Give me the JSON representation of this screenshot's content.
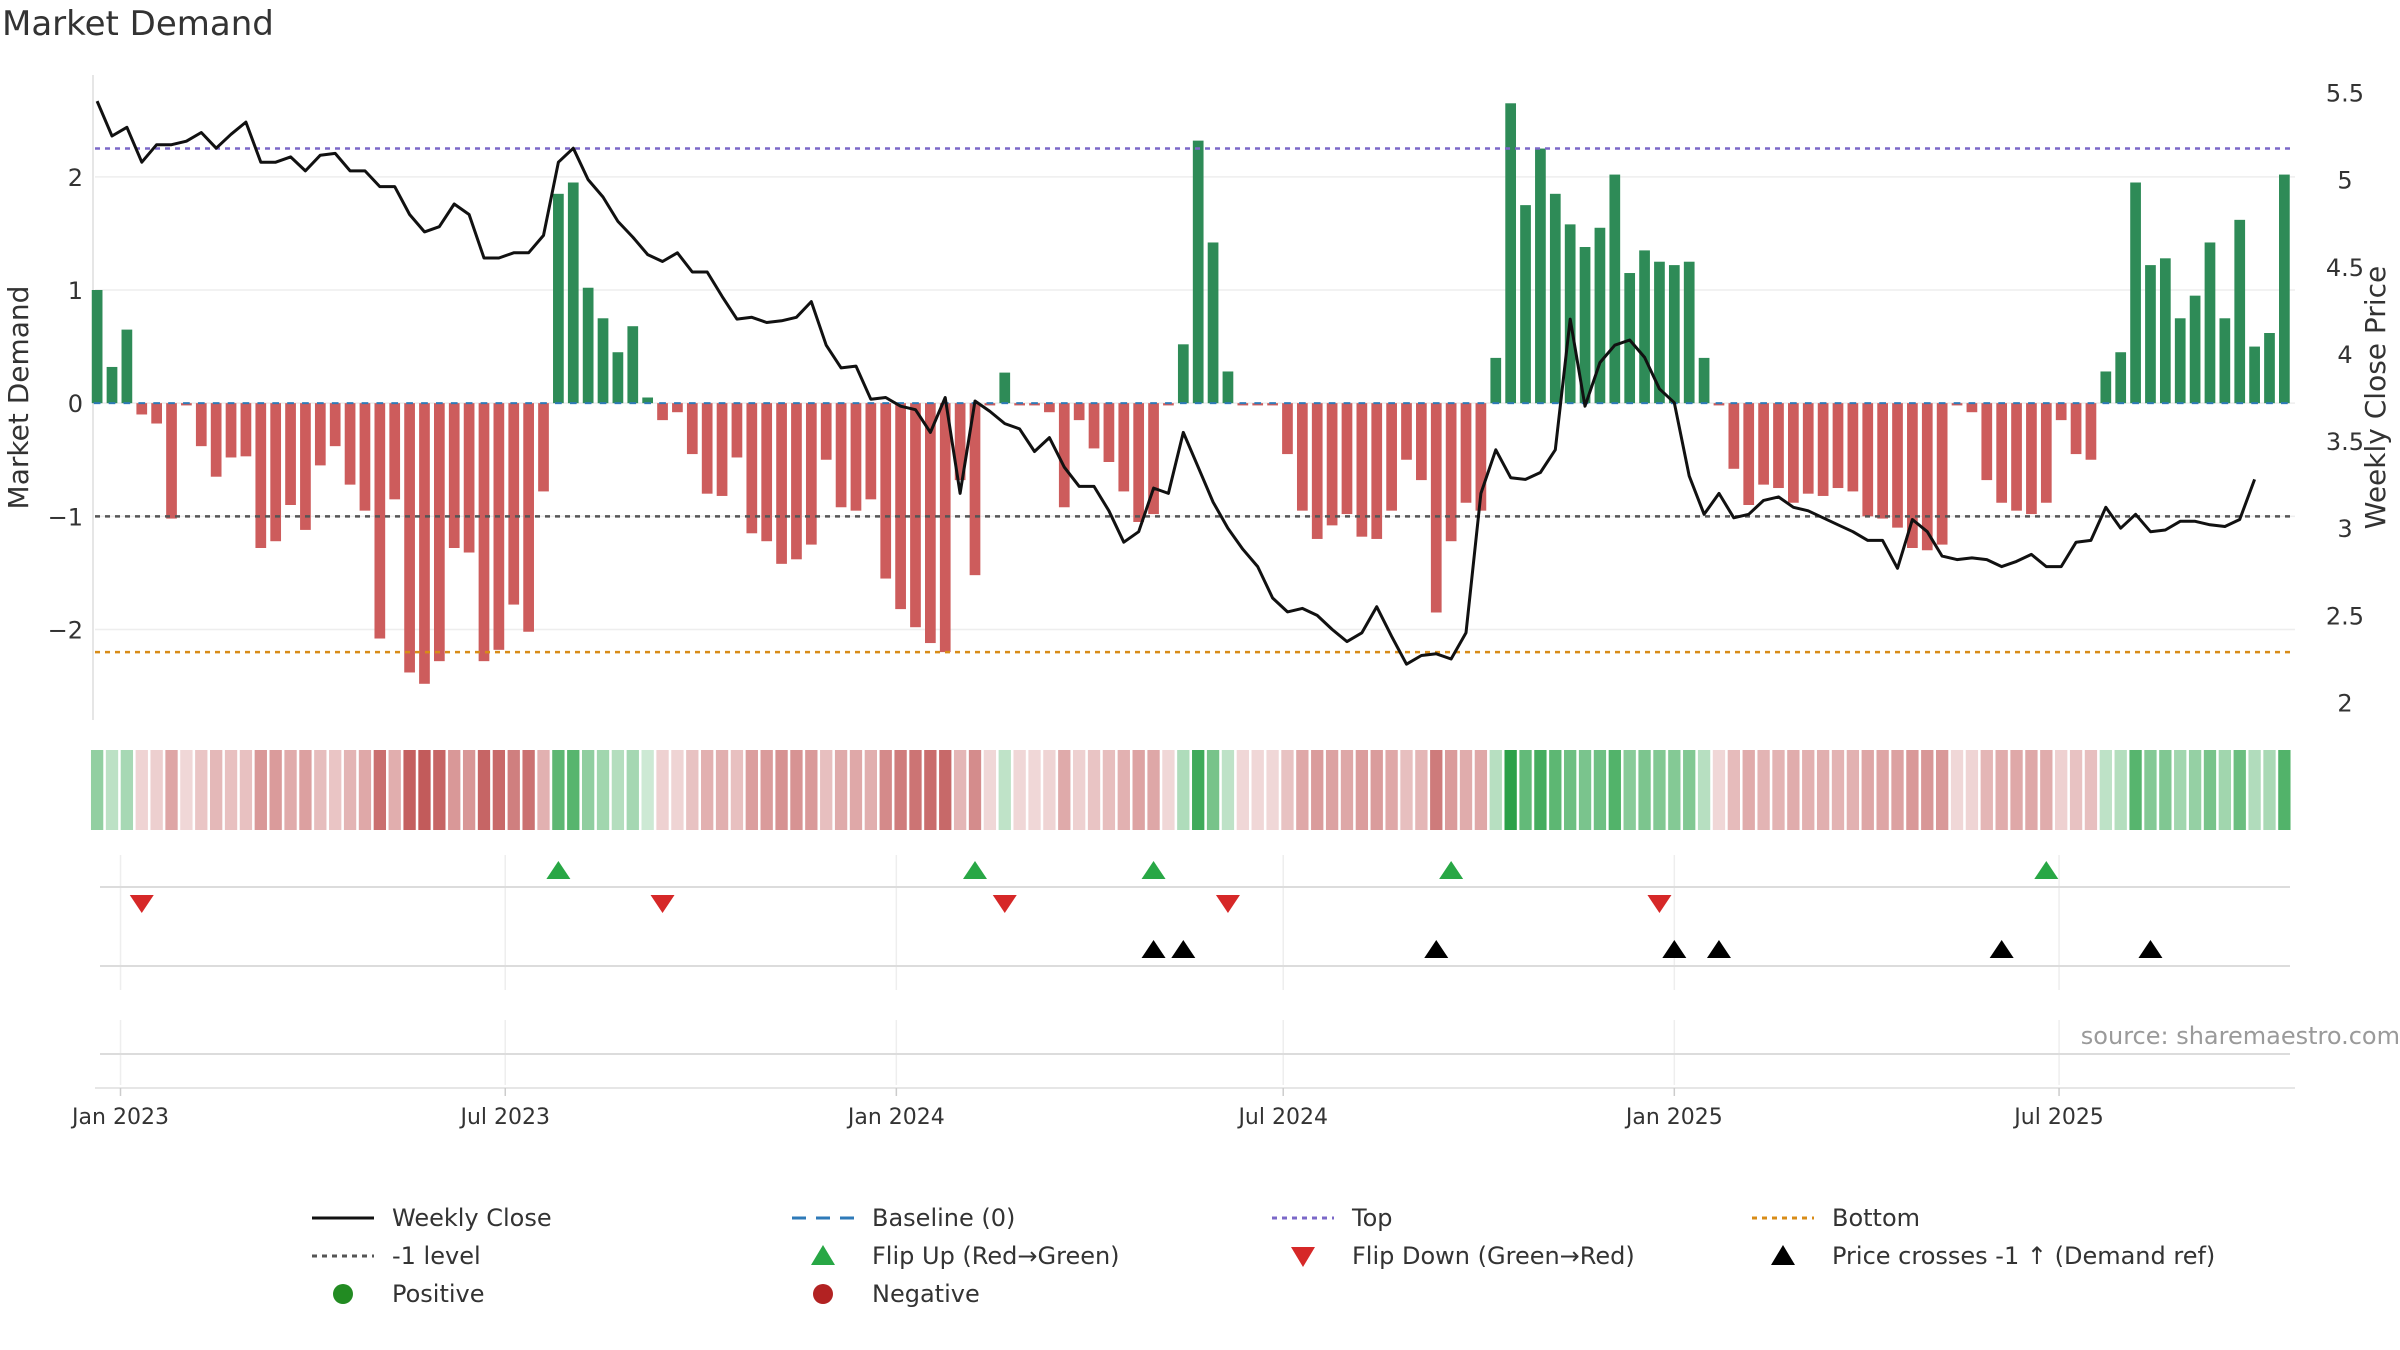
{
  "chart_data": {
    "type": "bar+line",
    "title": "Market Demand",
    "ylabel": "Market Demand",
    "y2label": "Weekly Close Price",
    "ylim": [
      -2.8,
      2.9
    ],
    "y2lim": [
      1.9,
      5.6
    ],
    "yticks": [
      2,
      1,
      0,
      -1,
      -2
    ],
    "yticklabels": [
      "2",
      "1",
      "0",
      "−1",
      "−2"
    ],
    "y2ticks": [
      5.5,
      5,
      4.5,
      4,
      3.5,
      3,
      2.5,
      2
    ],
    "y2ticklabels": [
      "5.5",
      "5",
      "4.5",
      "4",
      "3.5",
      "3",
      "2.5",
      "2"
    ],
    "x_start": "2022-12-20",
    "x_end": "2025-10-20",
    "xticks": [
      {
        "date": "2023-01-01",
        "label": "Jan 2023"
      },
      {
        "date": "2023-07-01",
        "label": "Jul 2023"
      },
      {
        "date": "2024-01-01",
        "label": "Jan 2024"
      },
      {
        "date": "2024-07-01",
        "label": "Jul 2024"
      },
      {
        "date": "2025-01-01",
        "label": "Jan 2025"
      },
      {
        "date": "2025-07-01",
        "label": "Jul 2025"
      }
    ],
    "first_week": "2022-12-21",
    "week_step_days": 7,
    "reference_lines": {
      "top": 2.25,
      "bottom": -2.2,
      "minus_one": -1,
      "baseline": 0
    },
    "colors": {
      "positive": "#2e8b57",
      "negative": "#cd5c5c",
      "line": "#111111",
      "top": "#7b68c8",
      "bottom": "#d88c18",
      "minus_one": "#555555",
      "baseline": "#2e7ab8",
      "flip_up": "#28a745",
      "flip_down": "#d62828",
      "cross": "#000000"
    },
    "demand": [
      1.0,
      0.32,
      0.65,
      -0.1,
      -0.18,
      -1.02,
      -0.02,
      -0.38,
      -0.65,
      -0.48,
      -0.47,
      -1.28,
      -1.22,
      -0.9,
      -1.12,
      -0.55,
      -0.38,
      -0.72,
      -0.95,
      -2.08,
      -0.85,
      -2.38,
      -2.48,
      -2.28,
      -1.28,
      -1.32,
      -2.28,
      -2.18,
      -1.78,
      -2.02,
      -0.78,
      1.85,
      1.95,
      1.02,
      0.75,
      0.45,
      0.68,
      0.05,
      -0.15,
      -0.08,
      -0.45,
      -0.8,
      -0.82,
      -0.48,
      -1.15,
      -1.22,
      -1.42,
      -1.38,
      -1.25,
      -0.5,
      -0.92,
      -0.95,
      -0.85,
      -1.55,
      -1.82,
      -1.98,
      -2.12,
      -2.2,
      -0.68,
      -1.52,
      -0.02,
      0.27,
      -0.02,
      -0.02,
      -0.08,
      -0.92,
      -0.15,
      -0.4,
      -0.52,
      -0.78,
      -1.05,
      -0.98,
      -0.02,
      0.52,
      2.32,
      1.42,
      0.28,
      -0.02,
      -0.02,
      -0.02,
      -0.45,
      -0.95,
      -1.2,
      -1.08,
      -0.98,
      -1.18,
      -1.2,
      -0.95,
      -0.5,
      -0.68,
      -1.85,
      -1.22,
      -0.88,
      -0.95,
      0.4,
      2.65,
      1.75,
      2.25,
      1.85,
      1.58,
      1.38,
      1.55,
      2.02,
      1.15,
      1.35,
      1.25,
      1.22,
      1.25,
      0.4,
      -0.02,
      -0.58,
      -0.9,
      -0.72,
      -0.75,
      -0.88,
      -0.8,
      -0.82,
      -0.75,
      -0.78,
      -1.0,
      -1.02,
      -1.1,
      -1.28,
      -1.3,
      -1.25,
      -0.02,
      -0.08,
      -0.68,
      -0.88,
      -0.95,
      -0.98,
      -0.88,
      -0.15,
      -0.45,
      -0.5,
      0.28,
      0.45,
      1.95,
      1.22,
      1.28,
      0.75,
      0.95,
      1.42,
      0.75,
      1.62,
      0.5,
      0.62,
      2.02
    ],
    "weekly_close": [
      5.45,
      5.25,
      5.3,
      5.1,
      5.2,
      5.2,
      5.22,
      5.27,
      5.18,
      5.26,
      5.33,
      5.1,
      5.1,
      5.13,
      5.05,
      5.14,
      5.15,
      5.05,
      5.05,
      4.96,
      4.96,
      4.8,
      4.7,
      4.73,
      4.86,
      4.8,
      4.55,
      4.55,
      4.58,
      4.58,
      4.68,
      5.1,
      5.18,
      5.0,
      4.9,
      4.76,
      4.67,
      4.57,
      4.53,
      4.58,
      4.47,
      4.47,
      4.33,
      4.2,
      4.21,
      4.18,
      4.19,
      4.21,
      4.3,
      4.05,
      3.92,
      3.93,
      3.74,
      3.75,
      3.7,
      3.68,
      3.55,
      3.75,
      3.2,
      3.73,
      3.67,
      3.6,
      3.57,
      3.44,
      3.52,
      3.35,
      3.24,
      3.24,
      3.1,
      2.92,
      2.98,
      3.23,
      3.2,
      3.55,
      3.35,
      3.15,
      3.0,
      2.88,
      2.78,
      2.6,
      2.52,
      2.54,
      2.5,
      2.42,
      2.35,
      2.4,
      2.55,
      2.38,
      2.22,
      2.27,
      2.28,
      2.25,
      2.4,
      3.2,
      3.45,
      3.29,
      3.28,
      3.32,
      3.45,
      4.2,
      3.7,
      3.95,
      4.05,
      4.08,
      3.98,
      3.8,
      3.72,
      3.3,
      3.08,
      3.2,
      3.06,
      3.08,
      3.16,
      3.18,
      3.12,
      3.1,
      3.06,
      3.02,
      2.98,
      2.93,
      2.93,
      2.77,
      3.05,
      2.98,
      2.84,
      2.82,
      2.83,
      2.82,
      2.78,
      2.81,
      2.85,
      2.78,
      2.78,
      2.92,
      2.93,
      3.12,
      3.0,
      3.08,
      2.98,
      2.99,
      3.04,
      3.04,
      3.02,
      3.01,
      3.05,
      3.28
    ],
    "flip_up_weeks": [
      31,
      59,
      71,
      91,
      131
    ],
    "flip_down_weeks": [
      3,
      38,
      61,
      76,
      105
    ],
    "price_cross_weeks": [
      71,
      73,
      90,
      106,
      109,
      128,
      138
    ],
    "source_text": "source: sharemaestro.com",
    "legend": [
      {
        "key": "line",
        "label": "Weekly Close"
      },
      {
        "key": "baseline",
        "label": "Baseline (0)"
      },
      {
        "key": "top",
        "label": "Top"
      },
      {
        "key": "bottom",
        "label": "Bottom"
      },
      {
        "key": "minus_one",
        "label": "-1 level"
      },
      {
        "key": "flip_up",
        "label": "Flip Up (Red→Green)"
      },
      {
        "key": "flip_down",
        "label": "Flip Down (Green→Red)"
      },
      {
        "key": "cross",
        "label": "Price crosses -1 ↑ (Demand ref)"
      },
      {
        "key": "positive",
        "label": "Positive"
      },
      {
        "key": "negative",
        "label": "Negative"
      }
    ]
  }
}
